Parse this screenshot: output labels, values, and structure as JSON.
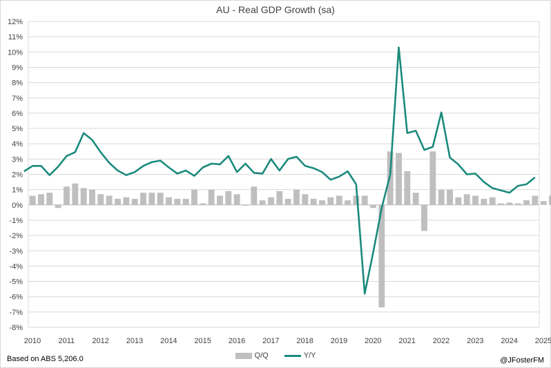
{
  "chart_data": {
    "type": "bar+line",
    "title": "AU - Real GDP Growth (sa)",
    "ylim": [
      -8,
      12
    ],
    "ytick_step": 1,
    "ytick_suffix": "%",
    "x_year_labels": [
      "2010",
      "2011",
      "2012",
      "2013",
      "2014",
      "2015",
      "2016",
      "2017",
      "2018",
      "2019",
      "2020",
      "2021",
      "2022",
      "2023",
      "2024",
      "2025"
    ],
    "x_start_year": 2010,
    "quarters_per_year": 4,
    "series": [
      {
        "name": "Q/Q",
        "kind": "bar",
        "color": "#bfbfbf",
        "values": [
          0.6,
          0.7,
          0.8,
          -0.2,
          1.2,
          1.4,
          1.1,
          1.0,
          0.7,
          0.6,
          0.4,
          0.5,
          0.4,
          0.8,
          0.8,
          0.8,
          0.5,
          0.4,
          0.4,
          1.0,
          0.1,
          1.0,
          0.6,
          0.9,
          0.7,
          -0.05,
          1.2,
          0.3,
          0.5,
          0.9,
          0.4,
          1.0,
          0.7,
          0.4,
          0.3,
          0.5,
          0.6,
          0.3,
          0.6,
          0.6,
          -0.2,
          -6.7,
          3.5,
          3.4,
          2.2,
          0.8,
          -1.7,
          3.5,
          1.0,
          1.0,
          0.5,
          0.7,
          0.6,
          0.4,
          0.5,
          0.1,
          0.15,
          0.1,
          0.3,
          0.6,
          0.25,
          0.6
        ]
      },
      {
        "name": "Y/Y",
        "kind": "line",
        "color": "#1a8a7c",
        "values": [
          2.2,
          2.55,
          2.55,
          1.95,
          2.5,
          3.2,
          3.45,
          4.7,
          4.25,
          3.45,
          2.75,
          2.25,
          1.95,
          2.15,
          2.55,
          2.8,
          2.9,
          2.45,
          2.05,
          2.25,
          1.9,
          2.45,
          2.7,
          2.65,
          3.2,
          2.15,
          2.7,
          2.1,
          2.05,
          3.0,
          2.25,
          3.0,
          3.15,
          2.55,
          2.4,
          2.15,
          1.65,
          1.85,
          2.2,
          1.35,
          -5.8,
          -3.1,
          -0.2,
          2.0,
          10.3,
          4.7,
          4.85,
          3.6,
          3.8,
          6.05,
          3.1,
          2.65,
          2.0,
          2.05,
          1.5,
          1.1,
          0.95,
          0.8,
          1.25,
          1.35,
          1.8
        ]
      }
    ]
  },
  "legend": {
    "bar_label": "Q/Q",
    "line_label": "Y/Y"
  },
  "footer": {
    "source": "Based on ABS 5,206.0",
    "credit": "@JFosterFM"
  }
}
